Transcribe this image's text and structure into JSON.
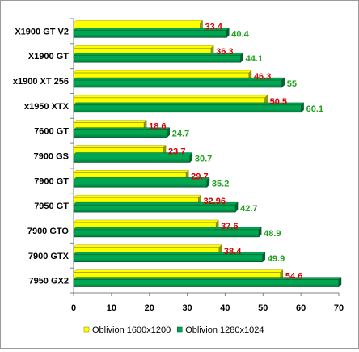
{
  "chart_data": {
    "type": "bar",
    "orientation": "horizontal",
    "categories": [
      "X1900 GT V2",
      "X1900 GT",
      "x1900 XT 256",
      "x1950 XTX",
      "7600 GT",
      "7900 GS",
      "7900 GT",
      "7950 GT",
      "7900 GTO",
      "7900 GTX",
      "7950 GX2"
    ],
    "series": [
      {
        "name": "Oblivion 1600x1200",
        "values": [
          33.4,
          36.3,
          46.3,
          50.5,
          18.6,
          23.7,
          29.7,
          32.96,
          37.6,
          38.4,
          54.6
        ],
        "labels": [
          "33.4",
          "36.3",
          "46.3",
          "50.5",
          "18.6",
          "23.7",
          "29.7",
          "32.96",
          "37.6",
          "38.4",
          "54.6"
        ],
        "color": "#ffff00",
        "label_color": "#d80000"
      },
      {
        "name": "Oblivion 1280x1024",
        "values": [
          40.4,
          44.1,
          55,
          60.1,
          24.7,
          30.7,
          35.2,
          42.7,
          48.9,
          49.9,
          70
        ],
        "labels": [
          "40.4",
          "44.1",
          "55",
          "60.1",
          "24.7",
          "30.7",
          "35.2",
          "42.7",
          "48.9",
          "49.9",
          ""
        ],
        "color": "#00a651",
        "label_color": "#1fa01f"
      }
    ],
    "xlim": [
      0,
      70
    ],
    "xticks": [
      "0",
      "10",
      "20",
      "30",
      "40",
      "50",
      "60",
      "70"
    ],
    "grid": false,
    "legend_position": "bottom",
    "title": "",
    "xlabel": "",
    "ylabel": ""
  }
}
